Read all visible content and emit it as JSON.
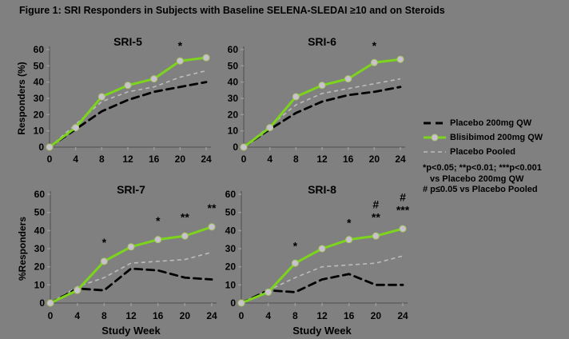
{
  "figure_title": "Figure 1: SRI Responders in Subjects with Baseline SELENA-SLEDAI ≥10 and on Steroids",
  "colors": {
    "background": "#808080",
    "blisibimod": "#7dd41c",
    "blisibimod_marker_fill": "#c9c0d2",
    "blisibimod_marker_edge": "#a6c860",
    "placebo_qw": "#000000",
    "placebo_pooled": "#bcbcbc",
    "axis": "#5f5f5f",
    "tick": "#9a9a9a",
    "text": "#000000"
  },
  "legend": {
    "items": [
      {
        "key": "placebo_qw",
        "label": "Placebo 200mg QW",
        "style": "black-dashed-line"
      },
      {
        "key": "blisibimod",
        "label": "Blisibimod 200mg QW",
        "style": "green-solid-line-with-marker"
      },
      {
        "key": "placebo_pooled",
        "label": "Placebo Pooled",
        "style": "gray-dashed-line"
      }
    ],
    "notes": [
      "*p<0.05; **p<0.01; ***p<0.001",
      "vs Placebo 200mg QW",
      "# p≤0.05 vs Placebo Pooled"
    ]
  },
  "chart_data": [
    {
      "type": "line",
      "title": "SRI-5",
      "xlabel": "",
      "ylabel": "Responders (%)",
      "x": [
        0,
        4,
        8,
        12,
        16,
        20,
        24
      ],
      "xlim": [
        0,
        24
      ],
      "ylim": [
        0,
        60
      ],
      "yticks": [
        0,
        10,
        20,
        30,
        40,
        50,
        60
      ],
      "series": [
        {
          "name": "Blisibimod 200mg QW",
          "values": [
            0,
            12,
            31,
            38,
            42,
            53,
            55
          ]
        },
        {
          "name": "Placebo 200mg QW",
          "values": [
            0,
            11,
            22,
            29,
            34,
            37,
            40
          ]
        },
        {
          "name": "Placebo Pooled",
          "values": [
            0,
            14,
            28,
            34,
            37,
            43,
            47
          ]
        }
      ],
      "annotations": [
        {
          "week": 20,
          "value": 62,
          "text": "*"
        }
      ]
    },
    {
      "type": "line",
      "title": "SRI-6",
      "xlabel": "",
      "ylabel": "",
      "x": [
        0,
        4,
        8,
        12,
        16,
        20,
        24
      ],
      "xlim": [
        0,
        24
      ],
      "ylim": [
        0,
        60
      ],
      "yticks": [
        0,
        10,
        20,
        30,
        40,
        50,
        60
      ],
      "series": [
        {
          "name": "Blisibimod 200mg QW",
          "values": [
            0,
            12,
            31,
            38,
            42,
            52,
            54
          ]
        },
        {
          "name": "Placebo 200mg QW",
          "values": [
            0,
            11,
            21,
            28,
            32,
            34,
            37
          ]
        },
        {
          "name": "Placebo Pooled",
          "values": [
            0,
            13,
            26,
            33,
            36,
            39,
            42
          ]
        }
      ],
      "annotations": [
        {
          "week": 20,
          "value": 62,
          "text": "*"
        }
      ]
    },
    {
      "type": "line",
      "title": "SRI-7",
      "xlabel": "Study Week",
      "ylabel": "%Responders",
      "x": [
        0,
        4,
        8,
        12,
        16,
        20,
        24
      ],
      "xlim": [
        0,
        24
      ],
      "ylim": [
        0,
        60
      ],
      "yticks": [
        0,
        10,
        20,
        30,
        40,
        50,
        60
      ],
      "series": [
        {
          "name": "Blisibimod 200mg QW",
          "values": [
            0,
            7,
            23,
            31,
            35,
            37,
            42
          ]
        },
        {
          "name": "Placebo 200mg QW",
          "values": [
            0,
            8,
            7,
            19,
            18,
            14,
            13
          ]
        },
        {
          "name": "Placebo Pooled",
          "values": [
            0,
            9,
            14,
            22,
            23,
            24,
            28
          ]
        }
      ],
      "annotations": [
        {
          "week": 8,
          "value": 33,
          "text": "*"
        },
        {
          "week": 16,
          "value": 45,
          "text": "*"
        },
        {
          "week": 20,
          "value": 47,
          "text": "**"
        },
        {
          "week": 24,
          "value": 52,
          "text": "**"
        }
      ]
    },
    {
      "type": "line",
      "title": "SRI-8",
      "xlabel": "Study Week",
      "ylabel": "",
      "x": [
        0,
        4,
        8,
        12,
        16,
        20,
        24
      ],
      "xlim": [
        0,
        24
      ],
      "ylim": [
        0,
        60
      ],
      "yticks": [
        0,
        10,
        20,
        30,
        40,
        50,
        60
      ],
      "series": [
        {
          "name": "Blisibimod 200mg QW",
          "values": [
            0,
            6,
            22,
            30,
            35,
            37,
            41
          ]
        },
        {
          "name": "Placebo 200mg QW",
          "values": [
            0,
            7,
            6,
            13,
            16,
            10,
            10
          ]
        },
        {
          "name": "Placebo Pooled",
          "values": [
            0,
            7,
            14,
            20,
            21,
            22,
            26
          ]
        }
      ],
      "annotations": [
        {
          "week": 8,
          "value": 31,
          "text": "*"
        },
        {
          "week": 16,
          "value": 44,
          "text": "*"
        },
        {
          "week": 20,
          "value": 47,
          "text": "**"
        },
        {
          "week": 20,
          "value": 54,
          "text": "#"
        },
        {
          "week": 24,
          "value": 51,
          "text": "***"
        },
        {
          "week": 24,
          "value": 58,
          "text": "#"
        }
      ]
    }
  ]
}
